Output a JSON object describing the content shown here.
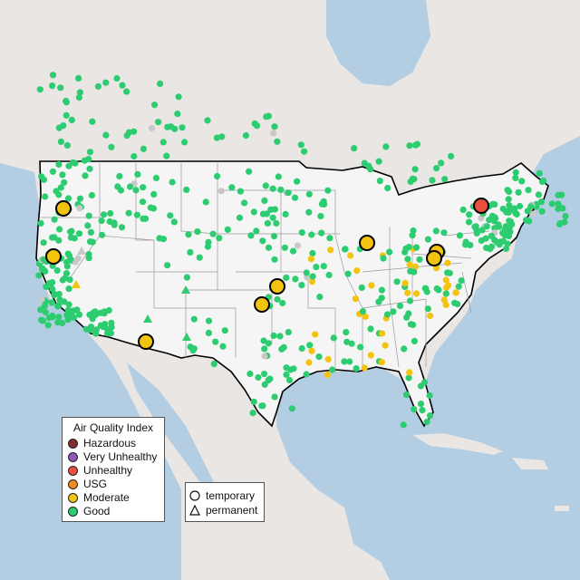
{
  "legend": {
    "title": "Air Quality Index",
    "categories": [
      {
        "label": "Hazardous",
        "color": "#7e2f2f"
      },
      {
        "label": "Very Unhealthy",
        "color": "#8e56b6"
      },
      {
        "label": "Unhealthy",
        "color": "#e84f3d"
      },
      {
        "label": "USG",
        "color": "#f08a1e"
      },
      {
        "label": "Moderate",
        "color": "#f2c40f"
      },
      {
        "label": "Good",
        "color": "#2ecc71"
      }
    ]
  },
  "monitor_types": [
    {
      "label": "temporary",
      "shape": "circle-icon"
    },
    {
      "label": "permanent",
      "shape": "triangle-icon"
    }
  ],
  "colors": {
    "water": "#b3cde3",
    "land": "#ececec",
    "us_land": "#f4f4f4",
    "good": "#2ecc71",
    "moderate": "#f2c40f",
    "unhealthy": "#e84f3d",
    "no_data": "#c8c8c8"
  }
}
